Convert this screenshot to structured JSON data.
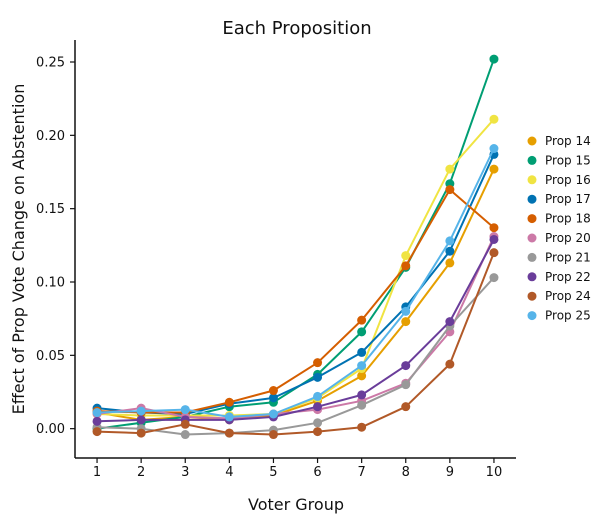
{
  "chart_data": {
    "type": "line",
    "title": "Each Proposition",
    "xlabel": "Voter Group",
    "ylabel": "Effect of Prop Vote Change on Abstention",
    "x": [
      1,
      2,
      3,
      4,
      5,
      6,
      7,
      8,
      9,
      10
    ],
    "xticks": [
      "1",
      "2",
      "3",
      "4",
      "5",
      "6",
      "7",
      "8",
      "9",
      "10"
    ],
    "yticks": [
      "0.00",
      "0.05",
      "0.10",
      "0.15",
      "0.20",
      "0.25"
    ],
    "ytick_values": [
      0,
      0.05,
      0.1,
      0.15,
      0.2,
      0.25
    ],
    "xlim": [
      0.5,
      10.5
    ],
    "ylim": [
      -0.02,
      0.265
    ],
    "grid": false,
    "legend_position": "right",
    "series": [
      {
        "name": "Prop 14",
        "color": "#E69F00",
        "values": [
          0.011,
          0.006,
          0.008,
          0.006,
          0.009,
          0.019,
          0.036,
          0.073,
          0.113,
          0.177
        ]
      },
      {
        "name": "Prop 15",
        "color": "#009E73",
        "values": [
          0.0,
          0.004,
          0.008,
          0.015,
          0.018,
          0.037,
          0.066,
          0.11,
          0.167,
          0.252
        ]
      },
      {
        "name": "Prop 16",
        "color": "#F0E442",
        "values": [
          0.01,
          0.009,
          0.009,
          0.009,
          0.01,
          0.021,
          0.041,
          0.118,
          0.177,
          0.211
        ]
      },
      {
        "name": "Prop 17",
        "color": "#0072B2",
        "values": [
          0.014,
          0.011,
          0.01,
          0.017,
          0.021,
          0.035,
          0.052,
          0.083,
          0.121,
          0.187
        ]
      },
      {
        "name": "Prop 18",
        "color": "#D55E00",
        "values": [
          0.012,
          0.011,
          0.011,
          0.018,
          0.026,
          0.045,
          0.074,
          0.111,
          0.163,
          0.137
        ]
      },
      {
        "name": "Prop 20",
        "color": "#CC79A7",
        "values": [
          0.01,
          0.014,
          0.008,
          0.007,
          0.01,
          0.013,
          0.019,
          0.031,
          0.066,
          0.131
        ]
      },
      {
        "name": "Prop 21",
        "color": "#999999",
        "values": [
          0.001,
          0.0,
          -0.004,
          -0.003,
          -0.001,
          0.004,
          0.016,
          0.03,
          0.07,
          0.103
        ]
      },
      {
        "name": "Prop 22",
        "color": "#6A3D9A",
        "values": [
          0.005,
          0.006,
          0.006,
          0.006,
          0.008,
          0.015,
          0.023,
          0.043,
          0.073,
          0.129
        ]
      },
      {
        "name": "Prop 24",
        "color": "#B15928",
        "values": [
          -0.002,
          -0.003,
          0.003,
          -0.003,
          -0.004,
          -0.002,
          0.001,
          0.015,
          0.044,
          0.12
        ]
      },
      {
        "name": "Prop 25",
        "color": "#56B4E9",
        "values": [
          0.011,
          0.012,
          0.013,
          0.008,
          0.01,
          0.022,
          0.043,
          0.08,
          0.128,
          0.191
        ]
      }
    ]
  }
}
